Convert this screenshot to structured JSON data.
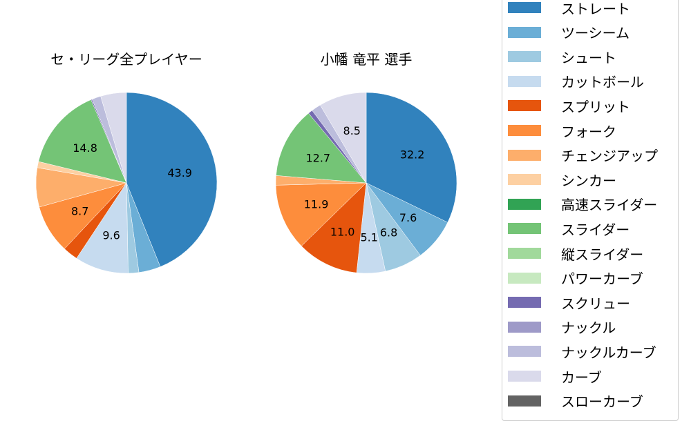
{
  "chart_data": [
    {
      "type": "pie",
      "title": "セ・リーグ全プレイヤー",
      "startangle": 90,
      "counterclock": false,
      "categories": [
        "ストレート",
        "ツーシーム",
        "シュート",
        "カットボール",
        "スプリット",
        "フォーク",
        "チェンジアップ",
        "シンカー",
        "スライダー",
        "スクリュー",
        "ナックルカーブ",
        "カーブ"
      ],
      "values": [
        43.9,
        3.9,
        1.9,
        9.6,
        2.7,
        8.7,
        7.0,
        1.1,
        14.8,
        0.2,
        1.6,
        4.6
      ],
      "labels_shown": [
        "43.9",
        "",
        "",
        "9.6",
        "",
        "8.7",
        "",
        "",
        "14.8",
        "",
        "",
        ""
      ]
    },
    {
      "type": "pie",
      "title": "小幡 竜平  選手",
      "startangle": 90,
      "counterclock": false,
      "categories": [
        "ストレート",
        "ツーシーム",
        "シュート",
        "カットボール",
        "スプリット",
        "フォーク",
        "チェンジアップ",
        "スライダー",
        "スクリュー",
        "ナックルカーブ",
        "カーブ"
      ],
      "values": [
        32.2,
        7.6,
        6.8,
        5.1,
        11.0,
        11.9,
        1.7,
        12.7,
        0.8,
        1.7,
        8.5
      ],
      "labels_shown": [
        "32.2",
        "7.6",
        "6.8",
        "5.1",
        "11.0",
        "11.9",
        "",
        "12.7",
        "",
        "",
        "8.5"
      ]
    }
  ],
  "titles": {
    "left": "セ・リーグ全プレイヤー",
    "right": "小幡 竜平  選手"
  },
  "legend": {
    "position": "right",
    "items": [
      {
        "label": "ストレート",
        "color": "#3182bd"
      },
      {
        "label": "ツーシーム",
        "color": "#6baed6"
      },
      {
        "label": "シュート",
        "color": "#9ecae1"
      },
      {
        "label": "カットボール",
        "color": "#c6dbef"
      },
      {
        "label": "スプリット",
        "color": "#e6550d"
      },
      {
        "label": "フォーク",
        "color": "#fd8d3c"
      },
      {
        "label": "チェンジアップ",
        "color": "#fdae6b"
      },
      {
        "label": "シンカー",
        "color": "#fdd0a2"
      },
      {
        "label": "高速スライダー",
        "color": "#31a354"
      },
      {
        "label": "スライダー",
        "color": "#74c476"
      },
      {
        "label": "縦スライダー",
        "color": "#a1d99b"
      },
      {
        "label": "パワーカーブ",
        "color": "#c7e9c0"
      },
      {
        "label": "スクリュー",
        "color": "#756bb1"
      },
      {
        "label": "ナックル",
        "color": "#9e9ac8"
      },
      {
        "label": "ナックルカーブ",
        "color": "#bcbddc"
      },
      {
        "label": "カーブ",
        "color": "#dadaeb"
      },
      {
        "label": "スローカーブ",
        "color": "#636363"
      }
    ]
  }
}
